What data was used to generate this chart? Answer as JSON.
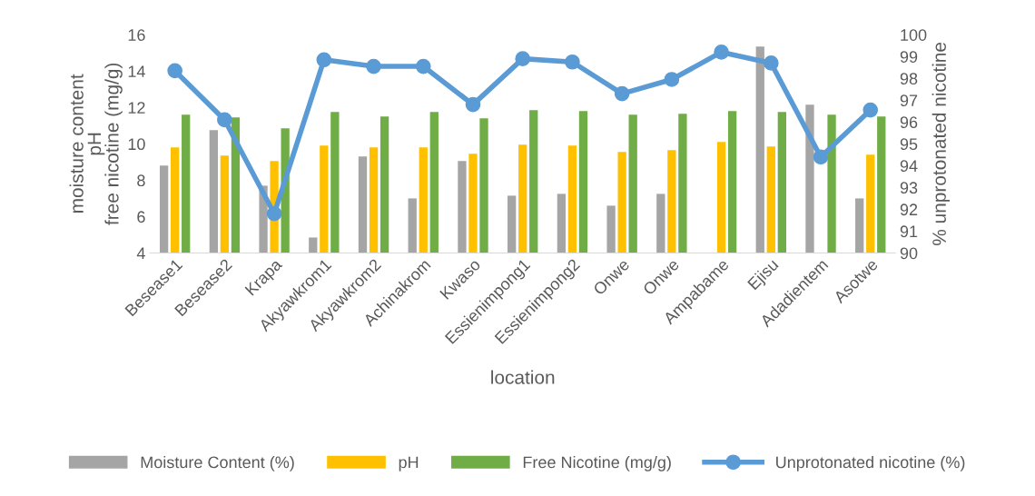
{
  "chart_data": {
    "type": "bar",
    "categories": [
      "Besease1",
      "Besease2",
      "Krapa",
      "Akyawkrom1",
      "Akyawkrom2",
      "Achinakrom",
      "Kwaso",
      "Essienimpong1",
      "Essienimpong2",
      "Onwe",
      "Onwe",
      "Ampabame",
      "Ejisu",
      "Adadientem",
      "Asotwe"
    ],
    "xlabel": "location",
    "ylabel": "moisture content\npH\nfree nicotine (mg/g)",
    "y2label": "% unprotonated nicotine",
    "series": [
      {
        "name": "Moisture Content (%)",
        "color": "#a5a5a5",
        "values": [
          8.8,
          10.75,
          7.7,
          4.85,
          9.3,
          7.0,
          9.05,
          7.15,
          7.25,
          6.6,
          7.25,
          4,
          15.35,
          12.15,
          7.0
        ]
      },
      {
        "name": "pH",
        "color": "#ffc000",
        "values": [
          9.8,
          9.35,
          9.05,
          9.9,
          9.8,
          9.8,
          9.45,
          9.95,
          9.9,
          9.55,
          9.65,
          10.1,
          9.85,
          null,
          9.4
        ]
      },
      {
        "name": "Free Nicotine (mg/g)",
        "color": "#70ad47",
        "values": [
          11.6,
          11.45,
          10.85,
          11.75,
          11.5,
          11.75,
          11.4,
          11.85,
          11.8,
          11.6,
          11.65,
          11.8,
          11.75,
          11.6,
          11.5
        ]
      },
      {
        "name": "Unprotonated nicotine (%)",
        "type": "line",
        "axis": "y2",
        "marker": "circle",
        "color": "#5b9bd5",
        "values": [
          98.35,
          96.1,
          91.8,
          98.85,
          98.55,
          98.55,
          96.8,
          98.9,
          98.75,
          97.3,
          97.95,
          99.2,
          98.7,
          94.4,
          96.55
        ]
      }
    ],
    "ylim": [
      4,
      16
    ],
    "yticks": [
      4,
      6,
      8,
      10,
      12,
      14,
      16
    ],
    "y2lim": [
      90,
      100
    ],
    "y2ticks": [
      90,
      91,
      92,
      93,
      94,
      95,
      96,
      97,
      98,
      99,
      100
    ],
    "grid": false,
    "legend": "bottom"
  }
}
